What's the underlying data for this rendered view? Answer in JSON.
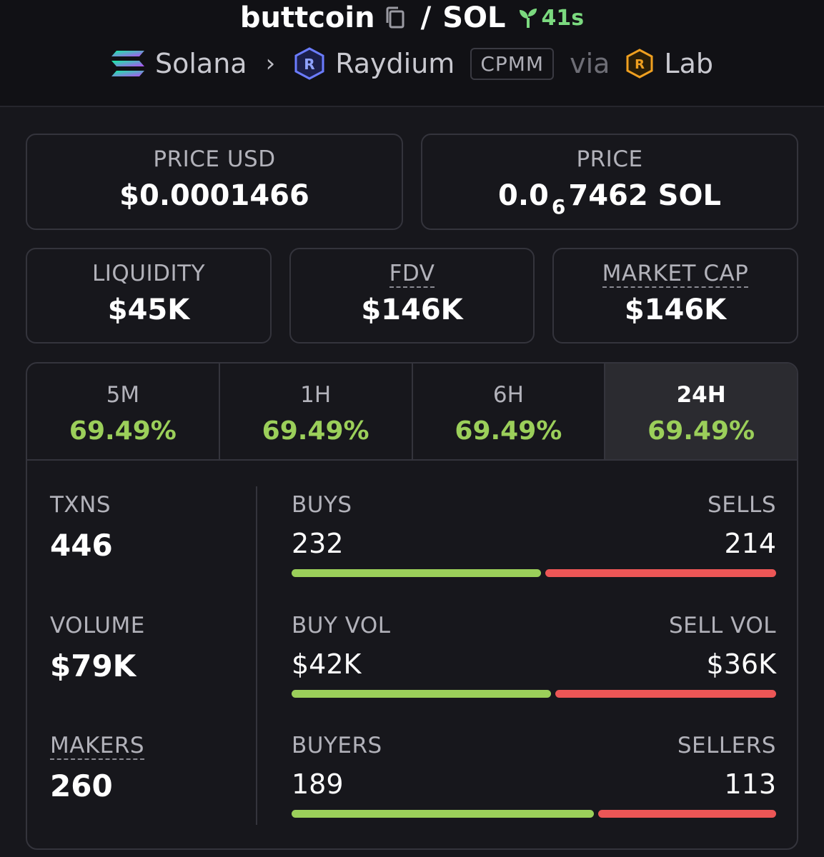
{
  "header": {
    "token": "buttcoin",
    "quote": "SOL",
    "age": "41s",
    "chain": "Solana",
    "dex": "Raydium",
    "pool_type": "CPMM",
    "via_label": "via",
    "launchpad": "Lab"
  },
  "price_usd": {
    "label": "PRICE USD",
    "value": "$0.0001466"
  },
  "price_native": {
    "label": "PRICE",
    "prefix": "0.0",
    "zeros_subscript": "6",
    "digits": "7462",
    "unit": "SOL"
  },
  "metrics": [
    {
      "label": "LIQUIDITY",
      "value": "$45K"
    },
    {
      "label": "FDV",
      "value": "$146K"
    },
    {
      "label": "MARKET CAP",
      "value": "$146K"
    }
  ],
  "timeframes": [
    {
      "label": "5M",
      "change": "69.49%"
    },
    {
      "label": "1H",
      "change": "69.49%"
    },
    {
      "label": "6H",
      "change": "69.49%"
    },
    {
      "label": "24H",
      "change": "69.49%"
    }
  ],
  "active_timeframe": "24H",
  "stats": {
    "txns": {
      "label": "TXNS",
      "value": "446"
    },
    "volume": {
      "label": "VOLUME",
      "value": "$79K"
    },
    "makers": {
      "label": "MAKERS",
      "value": "260"
    }
  },
  "splits": {
    "txns": {
      "buy_label": "BUYS",
      "buy_value": "232",
      "sell_label": "SELLS",
      "sell_value": "214",
      "buy_fraction": 0.52
    },
    "volume": {
      "buy_label": "BUY VOL",
      "buy_value": "$42K",
      "sell_label": "SELL VOL",
      "sell_value": "$36K",
      "buy_fraction": 0.54
    },
    "makers": {
      "buy_label": "BUYERS",
      "buy_value": "189",
      "sell_label": "SELLERS",
      "sell_value": "113",
      "buy_fraction": 0.63
    }
  },
  "colors": {
    "positive": "#9bcf5a",
    "negative": "#ec5656",
    "age": "#7bd97f"
  }
}
